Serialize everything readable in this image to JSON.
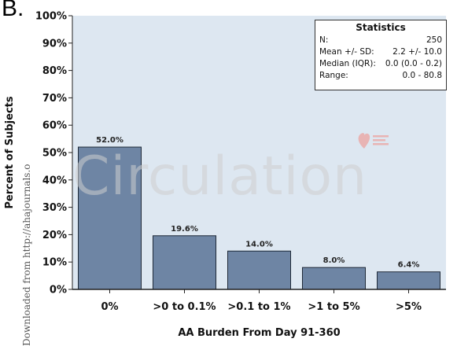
{
  "panel_label": "B.",
  "watermark_text": "Circulation",
  "download_note": "Downloaded from http://ahajournals.o",
  "statistics": {
    "title": "Statistics",
    "rows": [
      {
        "label": "N:",
        "value": "250"
      },
      {
        "label": "Mean +/- SD:",
        "value": "2.2 +/- 10.0"
      },
      {
        "label": "Median (IQR):",
        "value": "0.0 (0.0 - 0.2)"
      },
      {
        "label": "Range:",
        "value": "0.0 - 80.8"
      }
    ]
  },
  "colors": {
    "bar_fill": "#6e85a4",
    "bar_stroke": "#1f2a38",
    "plot_background": "#dde7f1",
    "logo_color": "#e8b4b4"
  },
  "chart_data": {
    "type": "bar",
    "title": "",
    "xlabel": "AA Burden From Day 91-360",
    "ylabel": "Percent of Subjects",
    "categories": [
      "0%",
      ">0 to 0.1%",
      ">0.1 to 1%",
      ">1 to 5%",
      ">5%"
    ],
    "values": [
      52.0,
      19.6,
      14.0,
      8.0,
      6.4
    ],
    "data_labels": [
      "52.0%",
      "19.6%",
      "14.0%",
      "8.0%",
      "6.4%"
    ],
    "ylim": [
      0,
      100
    ],
    "yticks": [
      0,
      10,
      20,
      30,
      40,
      50,
      60,
      70,
      80,
      90,
      100
    ],
    "ytick_labels": [
      "0%",
      "10%",
      "20%",
      "30%",
      "40%",
      "50%",
      "60%",
      "70%",
      "80%",
      "90%",
      "100%"
    ],
    "grid": false
  }
}
